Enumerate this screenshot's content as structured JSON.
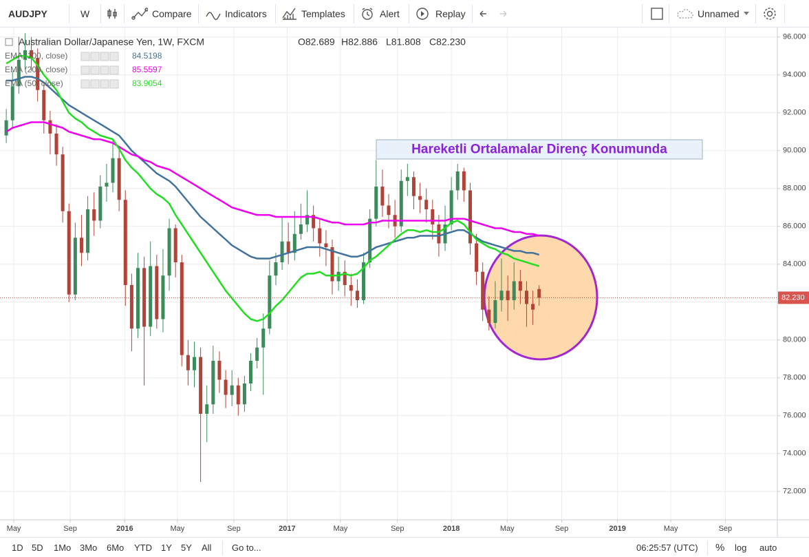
{
  "toolbar": {
    "symbol": "AUDJPY",
    "interval": "W",
    "buttons": [
      "Compare",
      "Indicators",
      "Templates",
      "Alert",
      "Replay"
    ],
    "layout_name": "Unnamed"
  },
  "chart_data": {
    "type": "candlestick",
    "title": "Australian Dollar/Japanese Yen, 1W, FXCM",
    "ohlc_labels": [
      "O82.689",
      "H82.886",
      "L81.808",
      "C82.230"
    ],
    "annotation": "Hareketli Ortalamalar Direnç Konumunda",
    "price_tag": "82.230",
    "up_color": "#3d8a5c",
    "down_color": "#b04438",
    "open": [
      90.8,
      91.6,
      93.4,
      94.8,
      95.3,
      94.9,
      93.2,
      91.6,
      90.9,
      89.8,
      86.8,
      82.4,
      85.4,
      84.6,
      86.9,
      86.3,
      88.1,
      88.3,
      89.6,
      87.4,
      82.9,
      80.6,
      83.8,
      80.7,
      83.9,
      81.1,
      83.4,
      85.9,
      84.1,
      79.2,
      78.4,
      79.1,
      76.1,
      76.6,
      78.9,
      77.9,
      77.1,
      77.6,
      76.6,
      77.7,
      78.9,
      79.6,
      80.6,
      83.4,
      84.1,
      85.2,
      84.6,
      85.6,
      86.1,
      86.6,
      85.9,
      85.1,
      84.9,
      83.1,
      83.6,
      82.9,
      82.6,
      82.1,
      84.1,
      86.4,
      88.1,
      87.1,
      86.6,
      86.0,
      88.4,
      88.6,
      87.6,
      87.4,
      86.9,
      86.1,
      85.1,
      86.1,
      87.9,
      88.9,
      87.9,
      85.1,
      83.6,
      81.6,
      80.9,
      82.1,
      82.6,
      82.1,
      83.1,
      82.6,
      81.9,
      82.689
    ],
    "high": [
      92.2,
      94.2,
      96.0,
      96.2,
      96.0,
      95.4,
      93.6,
      92.1,
      91.4,
      90.2,
      87.2,
      86.2,
      86.6,
      87.6,
      87.8,
      88.7,
      89.3,
      90.6,
      90.0,
      87.9,
      83.5,
      84.6,
      84.4,
      85.2,
      84.5,
      84.8,
      86.4,
      86.1,
      84.5,
      80.0,
      79.9,
      79.6,
      77.6,
      79.7,
      79.4,
      78.4,
      78.4,
      78.0,
      78.1,
      79.3,
      80.1,
      81.4,
      84.2,
      84.6,
      86.5,
      86.2,
      86.8,
      87.2,
      87.9,
      87.1,
      86.4,
      85.8,
      85.3,
      84.4,
      84.2,
      83.5,
      83.2,
      84.6,
      86.9,
      89.5,
      89.0,
      87.7,
      87.4,
      89.0,
      89.3,
      88.9,
      88.3,
      88.0,
      87.4,
      86.6,
      87.1,
      88.6,
      89.3,
      89.1,
      88.3,
      85.6,
      84.1,
      82.3,
      83.1,
      84.3,
      83.4,
      84.1,
      83.7,
      83.1,
      82.6,
      82.886
    ],
    "low": [
      90.4,
      91.2,
      93.0,
      94.3,
      94.2,
      92.6,
      90.9,
      89.8,
      89.2,
      86.2,
      82.0,
      82.1,
      83.9,
      84.2,
      85.5,
      85.9,
      87.3,
      87.8,
      86.8,
      81.8,
      79.4,
      80.1,
      77.6,
      80.2,
      80.6,
      80.4,
      82.6,
      83.3,
      78.6,
      77.6,
      77.5,
      72.5,
      74.6,
      76.1,
      77.2,
      76.4,
      76.5,
      76.0,
      76.2,
      77.3,
      78.5,
      77.1,
      80.3,
      82.9,
      83.7,
      84.0,
      84.2,
      85.3,
      85.7,
      85.2,
      84.4,
      83.9,
      82.4,
      82.6,
      82.3,
      81.8,
      81.7,
      81.9,
      83.8,
      86.0,
      86.5,
      85.9,
      85.4,
      85.7,
      87.6,
      86.9,
      86.7,
      86.2,
      85.3,
      84.4,
      84.7,
      85.8,
      87.4,
      87.3,
      84.5,
      82.9,
      81.0,
      80.5,
      80.6,
      81.5,
      81.0,
      81.6,
      81.9,
      80.7,
      80.8,
      81.808
    ],
    "close": [
      91.6,
      93.4,
      94.8,
      95.3,
      94.9,
      93.2,
      91.6,
      90.9,
      89.8,
      86.8,
      82.4,
      85.4,
      84.6,
      86.9,
      86.3,
      88.1,
      88.3,
      89.6,
      87.4,
      82.9,
      80.6,
      83.8,
      80.7,
      83.9,
      81.1,
      83.4,
      85.9,
      84.1,
      79.2,
      78.4,
      79.1,
      76.1,
      76.6,
      78.9,
      77.9,
      77.1,
      77.6,
      76.6,
      77.7,
      78.9,
      79.6,
      80.6,
      83.4,
      84.1,
      85.2,
      84.6,
      85.6,
      86.1,
      86.6,
      85.9,
      85.1,
      84.9,
      83.1,
      83.6,
      82.9,
      82.6,
      82.1,
      84.1,
      86.4,
      88.1,
      87.1,
      86.6,
      86.0,
      88.4,
      88.6,
      87.6,
      87.4,
      86.9,
      86.1,
      85.1,
      86.1,
      87.9,
      88.9,
      87.9,
      85.1,
      83.6,
      81.6,
      80.9,
      82.1,
      82.6,
      82.1,
      83.1,
      82.6,
      81.9,
      81.6,
      82.23
    ],
    "series": [
      {
        "name": "EMA (100, close)",
        "color": "#41729c",
        "legend_value": 84.5198,
        "values": [
          93.7,
          93.7,
          93.8,
          93.9,
          93.9,
          93.8,
          93.6,
          93.3,
          93.0,
          92.7,
          92.4,
          92.2,
          92.0,
          91.8,
          91.6,
          91.4,
          91.2,
          91.0,
          90.8,
          90.4,
          90.0,
          89.7,
          89.4,
          89.1,
          88.8,
          88.6,
          88.4,
          88.1,
          87.7,
          87.3,
          86.9,
          86.5,
          86.2,
          85.9,
          85.6,
          85.3,
          85.0,
          84.8,
          84.6,
          84.4,
          84.3,
          84.3,
          84.3,
          84.4,
          84.5,
          84.6,
          84.7,
          84.8,
          84.9,
          84.9,
          84.9,
          84.8,
          84.7,
          84.6,
          84.5,
          84.4,
          84.4,
          84.5,
          84.7,
          84.9,
          85.0,
          85.1,
          85.2,
          85.3,
          85.4,
          85.4,
          85.5,
          85.5,
          85.5,
          85.5,
          85.6,
          85.7,
          85.8,
          85.8,
          85.6,
          85.4,
          85.2,
          85.1,
          85.0,
          84.9,
          84.8,
          84.7,
          84.7,
          84.6,
          84.6,
          84.5
        ]
      },
      {
        "name": "EMA (200, close)",
        "color": "#ee00ee",
        "legend_value": 85.5597,
        "values": [
          91.0,
          91.2,
          91.3,
          91.4,
          91.5,
          91.5,
          91.5,
          91.4,
          91.3,
          91.2,
          91.0,
          90.9,
          90.8,
          90.7,
          90.6,
          90.6,
          90.5,
          90.4,
          90.2,
          90.0,
          89.8,
          89.7,
          89.5,
          89.4,
          89.2,
          89.1,
          89.0,
          88.8,
          88.6,
          88.4,
          88.2,
          88.0,
          87.8,
          87.6,
          87.4,
          87.2,
          87.0,
          86.9,
          86.8,
          86.7,
          86.6,
          86.6,
          86.6,
          86.5,
          86.5,
          86.5,
          86.5,
          86.5,
          86.5,
          86.5,
          86.4,
          86.3,
          86.2,
          86.2,
          86.1,
          86.1,
          86.1,
          86.1,
          86.2,
          86.2,
          86.3,
          86.3,
          86.3,
          86.3,
          86.3,
          86.3,
          86.3,
          86.3,
          86.3,
          86.3,
          86.3,
          86.4,
          86.4,
          86.4,
          86.3,
          86.2,
          86.1,
          86.0,
          85.9,
          85.9,
          85.8,
          85.7,
          85.7,
          85.6,
          85.6,
          85.5
        ]
      },
      {
        "name": "EMA (50, close)",
        "color": "#22dd22",
        "legend_value": 83.9054,
        "values": [
          94.6,
          94.8,
          95.0,
          95.0,
          94.9,
          94.5,
          94.0,
          93.6,
          93.2,
          92.6,
          92.0,
          91.7,
          91.5,
          91.2,
          91.0,
          90.8,
          90.7,
          90.6,
          90.1,
          89.5,
          89.1,
          88.8,
          88.4,
          88.0,
          87.7,
          87.5,
          87.2,
          86.6,
          86.1,
          85.6,
          85.1,
          84.6,
          84.1,
          83.6,
          83.1,
          82.6,
          82.2,
          81.8,
          81.4,
          81.1,
          81.0,
          81.1,
          81.4,
          81.8,
          82.1,
          82.5,
          82.9,
          83.3,
          83.5,
          83.5,
          83.6,
          83.4,
          83.4,
          83.4,
          83.5,
          83.4,
          83.5,
          83.8,
          84.2,
          84.4,
          84.7,
          85.0,
          85.3,
          85.6,
          85.8,
          85.8,
          85.7,
          85.8,
          85.7,
          85.7,
          85.9,
          86.2,
          86.3,
          86.1,
          85.7,
          85.3,
          85.1,
          84.9,
          84.8,
          84.6,
          84.5,
          84.3,
          84.2,
          84.1,
          84.0,
          83.9
        ]
      }
    ],
    "xlim": [
      -1,
      123
    ],
    "xticks": [
      {
        "value": 1.2,
        "label": "May"
      },
      {
        "value": 10.2,
        "label": "Sep"
      },
      {
        "value": 18.9,
        "label": "2016"
      },
      {
        "value": 27.3,
        "label": "May"
      },
      {
        "value": 36.3,
        "label": "Sep"
      },
      {
        "value": 44.8,
        "label": "2017"
      },
      {
        "value": 53.3,
        "label": "May"
      },
      {
        "value": 62.4,
        "label": "Sep"
      },
      {
        "value": 71,
        "label": "2018"
      },
      {
        "value": 79.9,
        "label": "May"
      },
      {
        "value": 88.6,
        "label": "Sep"
      },
      {
        "value": 97.5,
        "label": "2019"
      },
      {
        "value": 106,
        "label": "May"
      },
      {
        "value": 114.7,
        "label": "Sep"
      }
    ],
    "ylim": [
      70.5,
      96.5
    ],
    "yticks": [
      {
        "value": 72,
        "label": "72.000"
      },
      {
        "value": 74,
        "label": "74.000"
      },
      {
        "value": 76,
        "label": "76.000"
      },
      {
        "value": 78,
        "label": "78.000"
      },
      {
        "value": 80,
        "label": "80.000"
      },
      {
        "value": 82,
        "label": "82.000"
      },
      {
        "value": 84,
        "label": "84.000"
      },
      {
        "value": 86,
        "label": "86.000"
      },
      {
        "value": 88,
        "label": "88.000"
      },
      {
        "value": 90,
        "label": "90.000"
      },
      {
        "value": 92,
        "label": "92.000"
      },
      {
        "value": 94,
        "label": "94.000"
      },
      {
        "value": 96,
        "label": "96.000"
      }
    ],
    "grid": true
  },
  "bottom_bar": {
    "ranges": [
      "1D",
      "5D",
      "1Mo",
      "3Mo",
      "6Mo",
      "YTD",
      "1Y",
      "5Y",
      "All"
    ],
    "goto": "Go to...",
    "clock": "06:25:57 (UTC)",
    "options": [
      "%",
      "log",
      "auto"
    ]
  }
}
